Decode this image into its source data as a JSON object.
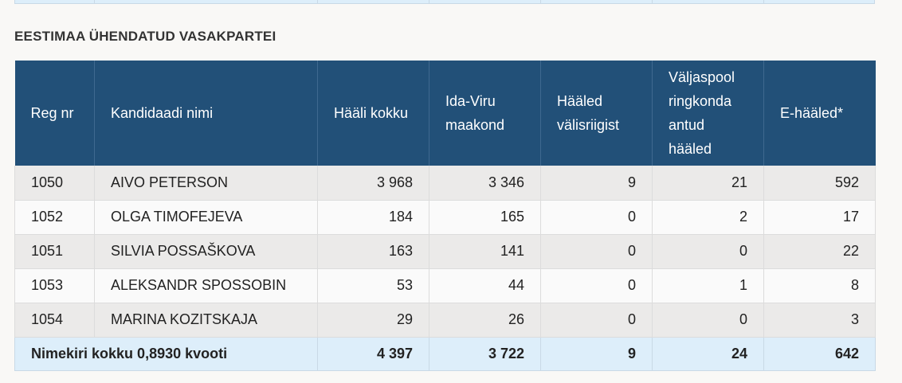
{
  "party": {
    "title": "EESTIMAA ÜHENDATUD VASAKPARTEI"
  },
  "table": {
    "headers": [
      "Reg nr",
      "Kandidaadi nimi",
      "Hääli kokku",
      "Ida-Viru maakond",
      "Hääled välisriigist",
      "Väljaspool ringkonda antud hääled",
      "E-hääled*"
    ],
    "rows": [
      {
        "reg": "1050",
        "name": "AIVO PETERSON",
        "total": "3 968",
        "idaviru": "3 346",
        "abroad": "9",
        "outside": "21",
        "evotes": "592"
      },
      {
        "reg": "1052",
        "name": "OLGA TIMOFEJEVA",
        "total": "184",
        "idaviru": "165",
        "abroad": "0",
        "outside": "2",
        "evotes": "17"
      },
      {
        "reg": "1051",
        "name": "SILVIA POSSAŠKOVA",
        "total": "163",
        "idaviru": "141",
        "abroad": "0",
        "outside": "0",
        "evotes": "22"
      },
      {
        "reg": "1053",
        "name": "ALEKSANDR SPOSSOBIN",
        "total": "53",
        "idaviru": "44",
        "abroad": "0",
        "outside": "1",
        "evotes": "8"
      },
      {
        "reg": "1054",
        "name": "MARINA KOZITSKAJA",
        "total": "29",
        "idaviru": "26",
        "abroad": "0",
        "outside": "0",
        "evotes": "3"
      }
    ],
    "footer": {
      "label": "Nimekiri kokku 0,8930 kvooti",
      "total": "4 397",
      "idaviru": "3 722",
      "abroad": "9",
      "outside": "24",
      "evotes": "642"
    }
  }
}
